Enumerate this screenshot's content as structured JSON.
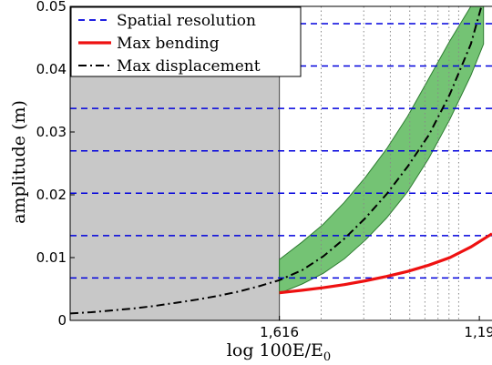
{
  "chart_data": {
    "type": "line",
    "ylabel": "amplitude (m)",
    "xlabel": "log 100E/E",
    "xlabel_subscript": "0",
    "ylim": [
      0,
      0.05
    ],
    "y_ticks": [
      {
        "value": 0,
        "label": "0"
      },
      {
        "value": 0.01,
        "label": "0.01"
      },
      {
        "value": 0.02,
        "label": "0.02"
      },
      {
        "value": 0.03,
        "label": "0.03"
      },
      {
        "value": 0.04,
        "label": "0.04"
      },
      {
        "value": 0.05,
        "label": "0.05"
      }
    ],
    "x_ticks": [
      {
        "value": 0.496,
        "label": "1,616"
      },
      {
        "value": 0.97,
        "label": "1,19"
      }
    ],
    "xlim": [
      0,
      1
    ],
    "shaded_region": {
      "x": [
        0,
        0.496
      ],
      "color": "#c8c8c8"
    },
    "spatial_resolution_levels": [
      0.00675,
      0.0135,
      0.02025,
      0.027,
      0.03375,
      0.0405,
      0.04725
    ],
    "vertical_dotted_x": [
      0.595,
      0.696,
      0.759,
      0.805,
      0.841,
      0.872,
      0.898,
      0.921
    ],
    "band": {
      "color": "#5cb85c",
      "x": [
        0.496,
        0.55,
        0.6,
        0.65,
        0.7,
        0.75,
        0.8,
        0.85,
        0.9,
        0.95,
        0.98
      ],
      "upper": [
        0.0097,
        0.0125,
        0.0153,
        0.0188,
        0.0228,
        0.0273,
        0.0325,
        0.0385,
        0.0445,
        0.05,
        0.05
      ],
      "lower": [
        0.0043,
        0.0058,
        0.0075,
        0.0098,
        0.0128,
        0.0163,
        0.0205,
        0.0258,
        0.032,
        0.039,
        0.044
      ]
    },
    "series": [
      {
        "name": "Max bending",
        "color": "#ee1111",
        "style": "solid",
        "x": [
          0.496,
          0.55,
          0.6,
          0.65,
          0.7,
          0.75,
          0.8,
          0.85,
          0.9,
          0.95,
          1.0
        ],
        "y": [
          0.0044,
          0.0048,
          0.0052,
          0.0057,
          0.0063,
          0.007,
          0.0078,
          0.0088,
          0.01,
          0.0117,
          0.0138
        ]
      },
      {
        "name": "Max displacement",
        "color": "#000000",
        "style": "dashdot",
        "x": [
          0.0,
          0.05,
          0.1,
          0.15,
          0.2,
          0.25,
          0.3,
          0.35,
          0.4,
          0.45,
          0.496,
          0.55,
          0.6,
          0.65,
          0.7,
          0.75,
          0.8,
          0.85,
          0.9,
          0.95,
          0.975
        ],
        "y": [
          0.0011,
          0.0013,
          0.0016,
          0.0019,
          0.0023,
          0.0028,
          0.0033,
          0.0039,
          0.0046,
          0.0055,
          0.0064,
          0.008,
          0.0102,
          0.013,
          0.0163,
          0.0201,
          0.0245,
          0.0295,
          0.036,
          0.044,
          0.05
        ]
      }
    ],
    "legend": [
      {
        "label": "Spatial resolution",
        "color": "#0000dd",
        "style": "dashed"
      },
      {
        "label": "Max bending",
        "color": "#ee1111",
        "style": "solid"
      },
      {
        "label": "Max displacement",
        "color": "#000000",
        "style": "dashdot"
      }
    ],
    "legend_position": "top-left"
  }
}
